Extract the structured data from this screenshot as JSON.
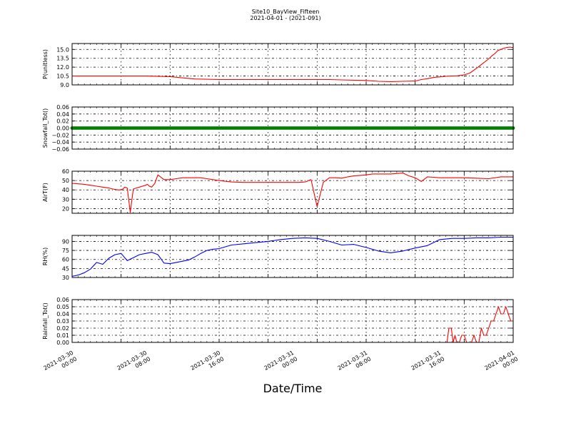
{
  "title": "Site10_BayView_Fifteen",
  "subtitle": "2021-04-01 - (2021-091)",
  "xlabel": "Date/Time",
  "x_tick_labels": [
    [
      "2021-03-30",
      "00:00"
    ],
    [
      "2021-03-30",
      "08:00"
    ],
    [
      "2021-03-30",
      "16:00"
    ],
    [
      "2021-03-31",
      "00:00"
    ],
    [
      "2021-03-31",
      "08:00"
    ],
    [
      "2021-03-31",
      "16:00"
    ],
    [
      "2021-04-01",
      "00:00"
    ]
  ],
  "chart_data": [
    {
      "type": "line",
      "ylabel": "P(unitless)",
      "ylim": [
        9.0,
        16.0
      ],
      "yticks": [
        "9.0",
        "10.5",
        "12.0",
        "13.5",
        "15.0"
      ],
      "ytick_values": [
        9.0,
        10.5,
        12.0,
        13.5,
        15.0
      ],
      "grid": true,
      "color": "#ff0000",
      "x_hours": [
        0,
        4,
        8,
        12,
        16,
        18,
        20,
        24,
        28,
        32,
        36,
        40,
        42,
        44,
        46,
        48,
        50,
        52,
        54,
        56,
        57,
        58,
        59,
        60,
        61,
        62,
        63,
        64,
        64.5,
        65,
        66,
        67,
        68,
        68.5,
        69,
        69.5,
        70,
        70.5,
        71,
        71.5,
        72
      ],
      "values": [
        10.5,
        10.5,
        10.5,
        10.5,
        10.4,
        10.2,
        10.0,
        9.9,
        9.9,
        9.9,
        9.9,
        9.9,
        9.9,
        9.85,
        9.8,
        9.75,
        9.6,
        9.55,
        9.6,
        9.65,
        9.9,
        10.05,
        10.25,
        10.35,
        10.45,
        10.5,
        10.55,
        10.7,
        10.85,
        11.05,
        11.8,
        12.6,
        13.4,
        13.9,
        14.3,
        14.8,
        15.0,
        15.2,
        15.35,
        15.4,
        15.3
      ]
    },
    {
      "type": "scatter",
      "ylabel": "Snowfall_Tot()",
      "ylim": [
        -0.06,
        0.06
      ],
      "yticks": [
        "−0.06",
        "−0.04",
        "−0.02",
        "0.00",
        "0.02",
        "0.04",
        "0.06"
      ],
      "ytick_values": [
        -0.06,
        -0.04,
        -0.02,
        0.0,
        0.02,
        0.04,
        0.06
      ],
      "grid": true,
      "color": "#008000",
      "x_hours": [
        0,
        72
      ],
      "values": [
        0.0,
        0.0
      ]
    },
    {
      "type": "line",
      "ylabel": "AirT(F)",
      "ylim": [
        15,
        60
      ],
      "yticks": [
        "20",
        "30",
        "40",
        "50",
        "60"
      ],
      "ytick_values": [
        20,
        30,
        40,
        50,
        60
      ],
      "grid": true,
      "color": "#ff0000",
      "x_hours": [
        0,
        1,
        2,
        3,
        4,
        5,
        6,
        7,
        7.5,
        8,
        8.3,
        8.6,
        9,
        9.5,
        10,
        10.5,
        11,
        11.5,
        12,
        12.3,
        12.6,
        13,
        13.5,
        14,
        15,
        16,
        17,
        18,
        19,
        20,
        21,
        22,
        23,
        24,
        26,
        28,
        30,
        32,
        34,
        35,
        36,
        37,
        38,
        38.3,
        38.6,
        39,
        40,
        41,
        42,
        43,
        44,
        45,
        46,
        47,
        48,
        49,
        50,
        51,
        52,
        53,
        54,
        55,
        56,
        57,
        58,
        59,
        60,
        62,
        64,
        66,
        68,
        70,
        72
      ],
      "values": [
        47,
        46.5,
        46,
        45,
        44,
        43,
        42,
        40.5,
        40,
        40,
        41,
        43,
        42,
        16,
        41,
        42,
        43,
        44,
        45,
        46,
        44,
        43,
        47,
        56,
        51,
        51,
        52,
        53,
        53,
        53,
        53,
        52,
        51,
        50,
        48.5,
        48,
        48,
        48,
        48,
        48,
        48,
        48,
        48.5,
        49,
        50,
        51,
        22,
        48,
        53,
        53,
        52.5,
        54,
        55,
        55.5,
        56,
        57,
        57,
        57,
        57,
        57.5,
        58,
        55,
        53,
        49,
        54,
        53.5,
        53,
        53,
        53,
        52.5,
        52,
        54,
        54
      ]
    },
    {
      "type": "line",
      "ylabel": "RH(%)",
      "ylim": [
        30,
        100
      ],
      "yticks": [
        "30",
        "45",
        "60",
        "75",
        "90"
      ],
      "ytick_values": [
        30,
        45,
        60,
        75,
        90
      ],
      "grid": true,
      "color": "#0000ff",
      "x_hours": [
        0,
        0.5,
        1,
        2,
        3,
        4,
        5,
        6,
        7,
        8,
        9,
        10,
        11,
        12,
        13,
        14,
        15,
        16,
        17,
        18,
        19,
        20,
        21,
        22,
        23,
        24,
        26,
        28,
        30,
        32,
        34,
        36,
        38,
        40,
        42,
        44,
        46,
        48,
        50,
        52,
        54,
        56,
        58,
        60,
        62,
        64,
        66,
        68,
        70,
        72
      ],
      "values": [
        32,
        33,
        34,
        38,
        44,
        55,
        52,
        62,
        68,
        70,
        58,
        63,
        68,
        70,
        72,
        68,
        54,
        53,
        55,
        57,
        59,
        64,
        70,
        75,
        77,
        78,
        84,
        86,
        88,
        90,
        93,
        95,
        96,
        95,
        90,
        84,
        85,
        80,
        74,
        71,
        74,
        79,
        83,
        93,
        95,
        95,
        96,
        96,
        97,
        97
      ]
    },
    {
      "type": "line",
      "ylabel": "Rainfall_Tot()",
      "ylim": [
        0.0,
        0.06
      ],
      "yticks": [
        "0.00",
        "0.01",
        "0.02",
        "0.03",
        "0.04",
        "0.05",
        "0.06"
      ],
      "ytick_values": [
        0.0,
        0.01,
        0.02,
        0.03,
        0.04,
        0.05,
        0.06
      ],
      "grid": true,
      "color": "#ff0000",
      "x_hours": [
        0,
        61.2,
        61.5,
        61.9,
        62.2,
        62.5,
        62.8,
        63.2,
        63.6,
        64.0,
        64.4,
        64.8,
        65.2,
        65.6,
        66.0,
        66.4,
        66.8,
        67.2,
        67.6,
        68.0,
        68.4,
        68.8,
        69.2,
        69.6,
        70.0,
        70.4,
        70.8,
        71.2,
        71.6,
        72.0
      ],
      "values": [
        0,
        0,
        0.02,
        0.02,
        0,
        0.01,
        0,
        0,
        0.01,
        0.01,
        0,
        0,
        0,
        0.01,
        0,
        0,
        0.02,
        0.01,
        0.01,
        0.02,
        0.03,
        0.03,
        0.04,
        0.05,
        0.04,
        0.04,
        0.05,
        0.04,
        0.03,
        0.03
      ]
    }
  ]
}
